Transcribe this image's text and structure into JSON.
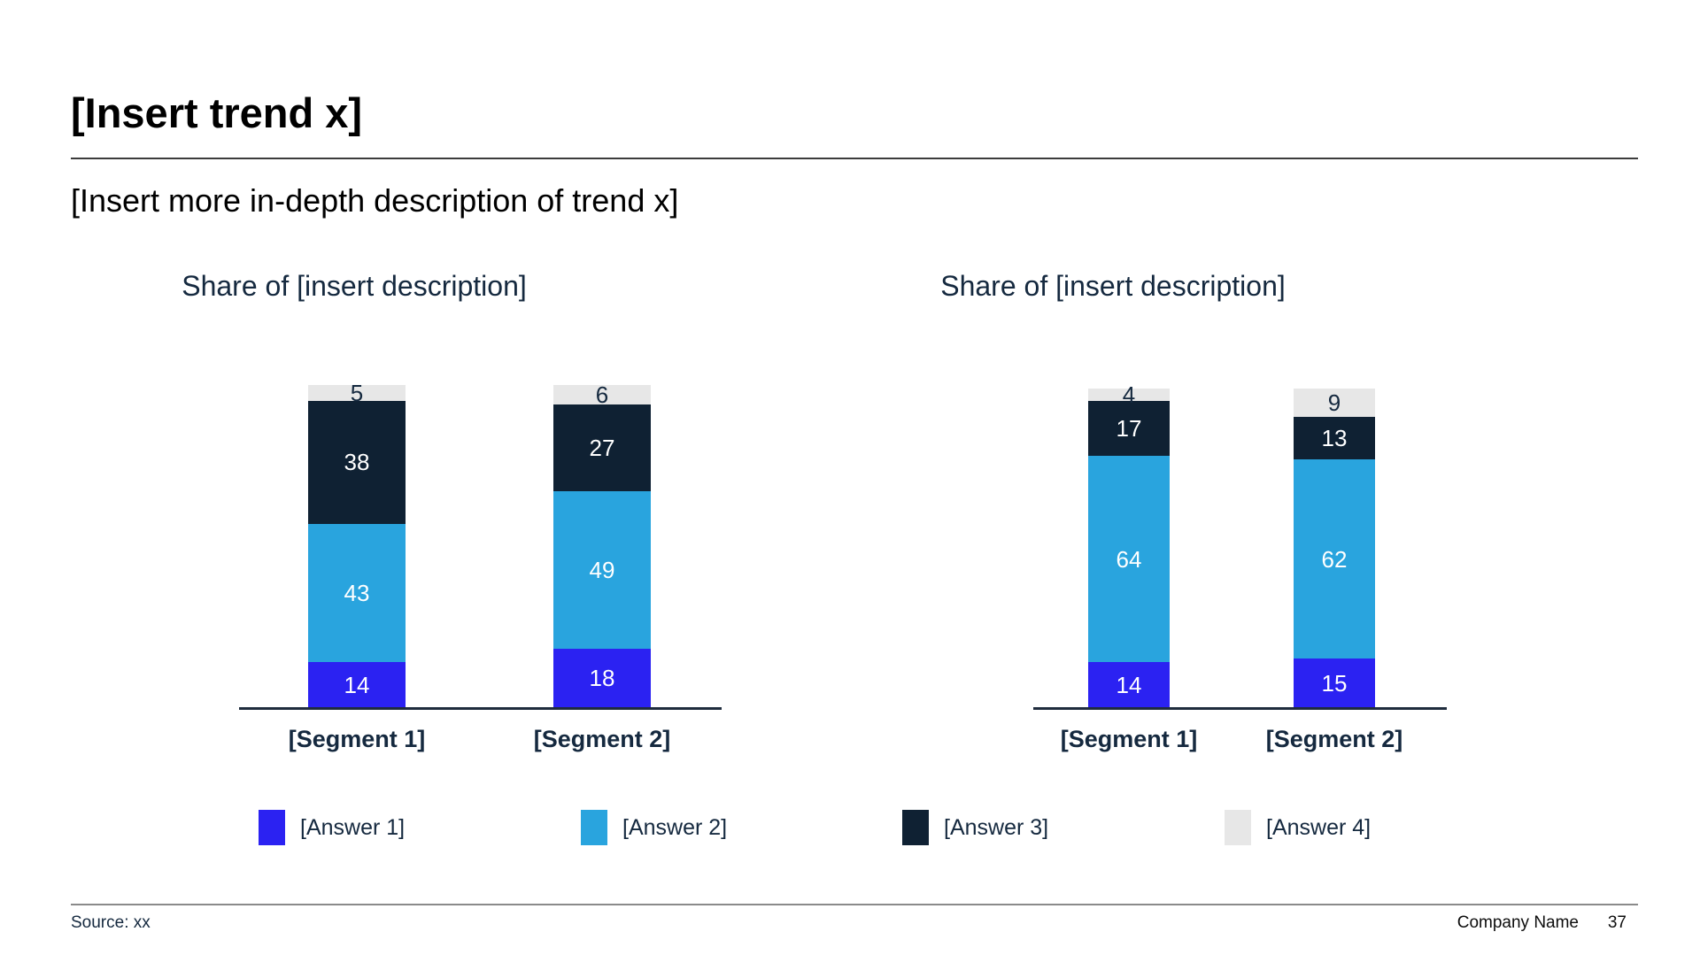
{
  "slide": {
    "title": "[Insert trend x]",
    "subtitle": "[Insert more in-depth description of trend x]",
    "footer": {
      "source": "Source: xx",
      "company": "Company Name",
      "page": "37"
    }
  },
  "colors": {
    "answer1": "#2b22f2",
    "answer2": "#29a4de",
    "answer3": "#0f2133",
    "answer4": "#e7e7e7",
    "text_navy": "#15293f"
  },
  "legend": [
    {
      "label": "[Answer 1]",
      "color_key": "answer1"
    },
    {
      "label": "[Answer 2]",
      "color_key": "answer2"
    },
    {
      "label": "[Answer 3]",
      "color_key": "answer3"
    },
    {
      "label": "[Answer 4]",
      "color_key": "answer4"
    }
  ],
  "chart_data": [
    {
      "type": "bar",
      "stacked": true,
      "title": "Share of [insert description]",
      "categories": [
        "[Segment 1]",
        "[Segment 2]"
      ],
      "series": [
        {
          "name": "[Answer 1]",
          "color_key": "answer1",
          "values": [
            14,
            18
          ]
        },
        {
          "name": "[Answer 2]",
          "color_key": "answer2",
          "values": [
            43,
            49
          ]
        },
        {
          "name": "[Answer 3]",
          "color_key": "answer3",
          "values": [
            38,
            27
          ]
        },
        {
          "name": "[Answer 4]",
          "color_key": "answer4",
          "values": [
            5,
            6
          ]
        }
      ],
      "ylim": [
        0,
        100
      ],
      "grid": false,
      "legend_position": "bottom"
    },
    {
      "type": "bar",
      "stacked": true,
      "title": "Share of [insert description]",
      "categories": [
        "[Segment 1]",
        "[Segment 2]"
      ],
      "series": [
        {
          "name": "[Answer 1]",
          "color_key": "answer1",
          "values": [
            14,
            15
          ]
        },
        {
          "name": "[Answer 2]",
          "color_key": "answer2",
          "values": [
            64,
            62
          ]
        },
        {
          "name": "[Answer 3]",
          "color_key": "answer3",
          "values": [
            17,
            13
          ]
        },
        {
          "name": "[Answer 4]",
          "color_key": "answer4",
          "values": [
            4,
            9
          ]
        }
      ],
      "ylim": [
        0,
        100
      ],
      "grid": false,
      "legend_position": "bottom"
    }
  ]
}
